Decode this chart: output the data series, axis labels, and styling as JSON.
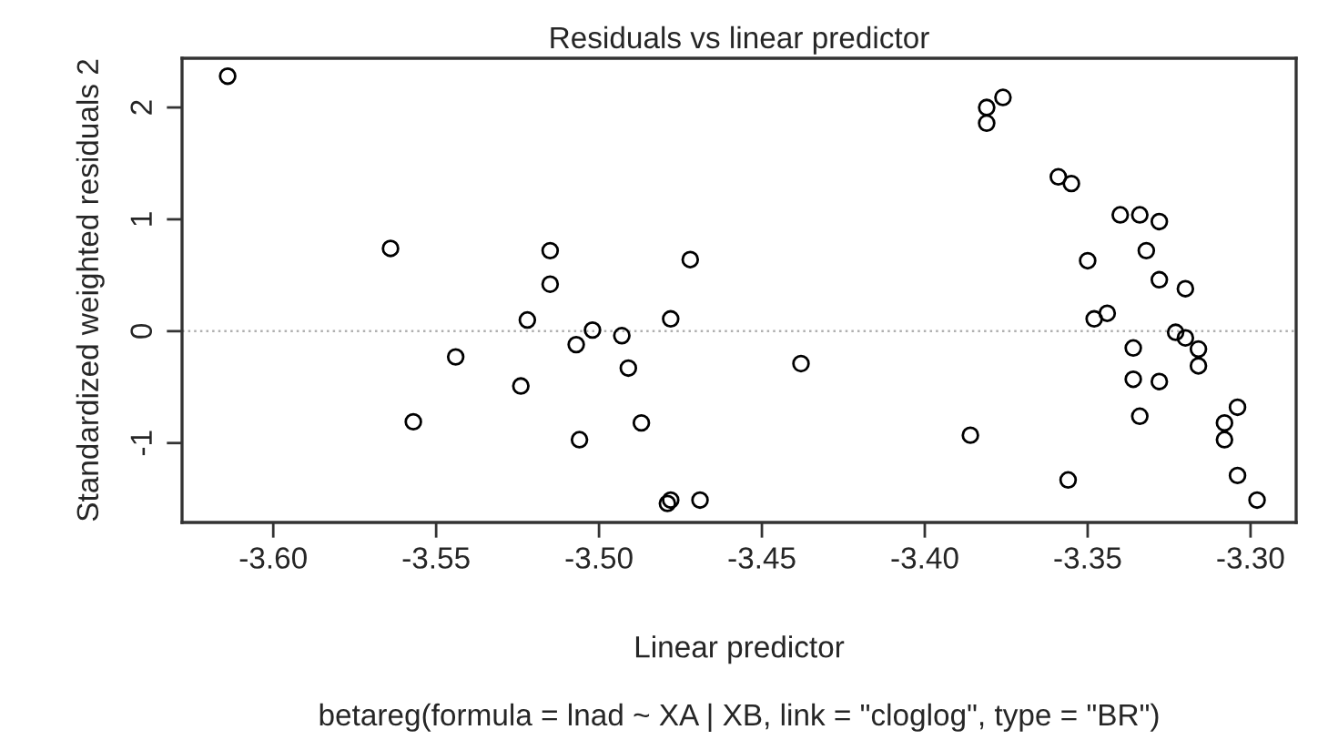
{
  "chart_data": {
    "type": "scatter",
    "title": "Residuals vs linear predictor",
    "subtitle": "betareg(formula = lnad ~ XA | XB, link = \"cloglog\", type = \"BR\")",
    "xlabel": "Linear predictor",
    "ylabel": "Standardized weighted residuals 2",
    "x": [
      -3.614,
      -3.564,
      -3.557,
      -3.544,
      -3.524,
      -3.522,
      -3.515,
      -3.515,
      -3.507,
      -3.506,
      -3.502,
      -3.493,
      -3.491,
      -3.487,
      -3.478,
      -3.472,
      -3.479,
      -3.478,
      -3.469,
      -3.438,
      -3.386,
      -3.381,
      -3.381,
      -3.376,
      -3.359,
      -3.355,
      -3.356,
      -3.35,
      -3.348,
      -3.344,
      -3.34,
      -3.334,
      -3.328,
      -3.332,
      -3.328,
      -3.32,
      -3.336,
      -3.336,
      -3.328,
      -3.334,
      -3.323,
      -3.32,
      -3.316,
      -3.316,
      -3.308,
      -3.304,
      -3.308,
      -3.304,
      -3.298
    ],
    "series": [
      {
        "color": "#000000",
        "values": [
          2.28,
          0.74,
          -0.81,
          -0.23,
          -0.49,
          0.1,
          0.72,
          0.42,
          -0.12,
          -0.97,
          0.01,
          -0.04,
          -0.33,
          -0.82,
          0.11,
          0.64,
          -1.54,
          -1.51,
          -1.51,
          -0.29,
          -0.93,
          2.0,
          1.86,
          2.09,
          1.38,
          1.32,
          -1.33,
          0.63,
          0.11,
          0.16,
          1.04,
          1.04,
          0.98,
          0.72,
          0.46,
          0.38,
          -0.15,
          -0.43,
          -0.45,
          -0.76,
          -0.01,
          -0.06,
          -0.16,
          -0.31,
          -0.82,
          -0.68,
          -0.97,
          -1.29,
          -1.51
        ]
      }
    ],
    "xlim": [
      -3.628,
      -3.286
    ],
    "ylim": [
      -1.71,
      2.44
    ],
    "xticks": [
      {
        "value": -3.6,
        "label": "-3.60"
      },
      {
        "value": -3.55,
        "label": "-3.55"
      },
      {
        "value": -3.5,
        "label": "-3.50"
      },
      {
        "value": -3.45,
        "label": "-3.45"
      },
      {
        "value": -3.4,
        "label": "-3.40"
      },
      {
        "value": -3.35,
        "label": "-3.35"
      },
      {
        "value": -3.3,
        "label": "-3.30"
      }
    ],
    "yticks": [
      -1,
      0,
      1,
      2
    ],
    "ref_lines": [
      {
        "axis": "y",
        "value": 0,
        "color": "#b0b0b0",
        "line_style": "dotted"
      }
    ],
    "marker": "circle",
    "grid": false,
    "legend": false
  }
}
